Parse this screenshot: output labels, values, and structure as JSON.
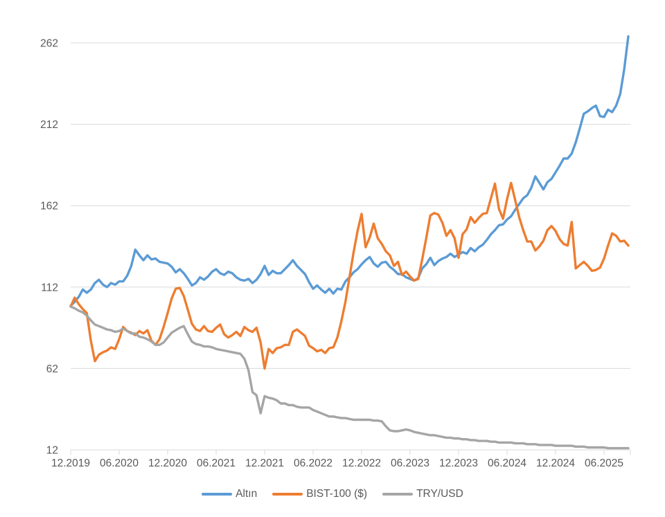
{
  "chart_data": {
    "type": "line",
    "title": "",
    "x_axis": {
      "tick_labels": [
        "12.2019",
        "06.2020",
        "12.2020",
        "06.2021",
        "12.2021",
        "06.2022",
        "12.2022",
        "06.2023",
        "12.2023",
        "06.2024",
        "12.2024",
        "06.2025"
      ],
      "start": "12.2019",
      "months_per_tick": 6
    },
    "y_axis": {
      "ticks": [
        12,
        62,
        112,
        162,
        212,
        262
      ],
      "range": [
        12,
        275
      ]
    },
    "x_step_months": 0.5,
    "grid_on": true,
    "grid_color": "#d9d9d9",
    "axis_color": "#d9d9d9",
    "tick_label_color": "#595959",
    "legend_position": "bottom",
    "series": [
      {
        "name": "Altın",
        "color": "#5B9BD5",
        "values": [
          100.5,
          103,
          106,
          110.5,
          108.5,
          110.5,
          114.5,
          116.5,
          113.5,
          112,
          114.5,
          113.5,
          115.5,
          115.5,
          119,
          125,
          135,
          131.5,
          128.5,
          131.5,
          129,
          129.5,
          127.5,
          127,
          126.5,
          124.5,
          121,
          123,
          120.5,
          117,
          113,
          114.5,
          118,
          116.5,
          118.5,
          121.5,
          123,
          120.5,
          119.5,
          121.5,
          120.5,
          118,
          116.5,
          116,
          117,
          114.5,
          116.5,
          120,
          125,
          119.5,
          122,
          120.5,
          120.5,
          123,
          125.5,
          128.5,
          125,
          122.5,
          120,
          115,
          111,
          113,
          110.5,
          108.5,
          111,
          108,
          111,
          110.5,
          115.5,
          118,
          121,
          123,
          126,
          128.5,
          130.5,
          126.5,
          124.5,
          127,
          127.5,
          124.5,
          122.5,
          120,
          120,
          118,
          117,
          116,
          117.5,
          123.5,
          126,
          130,
          125.5,
          128,
          129.5,
          130.5,
          132.5,
          130.5,
          132,
          133.5,
          132.5,
          136,
          134,
          136.5,
          138,
          141,
          144.5,
          147,
          150,
          150.5,
          153.5,
          155.5,
          159.5,
          163,
          166.5,
          168.5,
          173,
          180,
          176,
          172,
          176.5,
          178.5,
          182.5,
          186.5,
          191,
          191,
          194,
          201,
          209.5,
          218.5,
          220,
          222,
          223.5,
          217,
          216.5,
          221,
          219.5,
          223.5,
          230.5,
          246,
          266
        ]
      },
      {
        "name": "BIST-100 ($)",
        "color": "#ED7D31",
        "values": [
          100,
          105.5,
          101.5,
          98.5,
          96,
          79,
          66.5,
          70.5,
          72,
          73,
          75,
          74,
          80,
          87.5,
          85,
          84,
          82.5,
          85,
          83.5,
          85.5,
          79,
          76.5,
          80,
          87.5,
          96,
          105,
          111,
          111.5,
          106.5,
          98,
          89.5,
          86,
          85,
          88,
          85,
          84.5,
          87,
          89,
          83,
          81,
          82.5,
          84.5,
          82,
          87.5,
          85.5,
          84.5,
          87,
          78,
          62,
          74,
          71.5,
          74.5,
          75,
          76.5,
          76.5,
          84.5,
          86,
          84,
          82,
          76,
          74.5,
          72.5,
          73.5,
          71.5,
          74.5,
          75,
          81,
          91,
          103,
          118,
          133,
          146.5,
          157,
          136.5,
          142.5,
          151,
          142,
          138.5,
          134,
          131.5,
          125,
          127.5,
          119.5,
          121.5,
          118.5,
          116,
          117,
          129,
          142,
          156,
          157.5,
          156.5,
          151.5,
          143.5,
          147,
          142,
          130,
          144.5,
          147.5,
          155,
          151.5,
          154.5,
          157,
          157.5,
          166.5,
          175.5,
          160,
          154,
          166,
          176,
          165.5,
          155,
          147,
          140,
          140,
          134.5,
          137,
          140.5,
          147,
          149.5,
          146.5,
          141.5,
          138.5,
          137.5,
          152,
          123.5,
          125.5,
          127.5,
          125,
          122,
          122.5,
          124,
          129.5,
          137.5,
          145,
          143.5,
          140,
          140.5,
          137.5
        ]
      },
      {
        "name": "TRY/USD",
        "color": "#A5A5A5",
        "values": [
          100,
          99,
          97.5,
          96.5,
          94.5,
          91.5,
          89,
          88,
          87,
          86,
          85.5,
          84.5,
          85,
          86.5,
          85,
          83.5,
          83.5,
          81.5,
          81,
          80,
          78.5,
          76.5,
          76.5,
          78,
          81,
          84,
          85.5,
          87,
          88,
          83,
          78.5,
          77,
          76.5,
          75.5,
          75.5,
          75,
          74,
          73.5,
          73,
          72.5,
          72,
          71.5,
          71,
          68,
          61,
          47.5,
          45.5,
          34.5,
          45,
          44,
          43.5,
          42.5,
          40.5,
          40.5,
          39.5,
          39.5,
          38.5,
          38,
          38,
          38,
          36.5,
          35.5,
          34.5,
          33.5,
          32.5,
          32.5,
          32,
          31.5,
          31.5,
          31,
          30.5,
          30.5,
          30.5,
          30.5,
          30.5,
          30,
          30,
          29.5,
          26.5,
          24,
          23.5,
          23.5,
          24,
          24.5,
          24,
          23,
          22.5,
          22,
          21.5,
          21,
          21,
          20.5,
          20,
          19.5,
          19.5,
          19,
          19,
          18.5,
          18.5,
          18,
          18,
          17.5,
          17.5,
          17.5,
          17,
          17,
          16.5,
          16.5,
          16.5,
          16.5,
          16,
          16,
          16,
          15.5,
          15.5,
          15.5,
          15,
          15,
          15,
          15,
          14.5,
          14.5,
          14.5,
          14.5,
          14.5,
          14,
          14,
          14,
          13.5,
          13.5,
          13.5,
          13.5,
          13.5,
          13,
          13,
          13,
          13,
          13,
          13
        ]
      }
    ]
  }
}
